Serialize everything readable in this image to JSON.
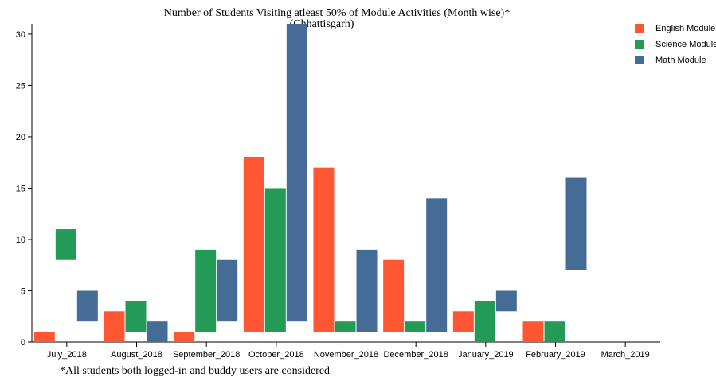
{
  "chart_data": {
    "type": "bar",
    "title": "Number of Students Visiting atleast 50% of Module Activities (Month wise)*",
    "subtitle": "(Chhattisgarh)",
    "footnote": "*All students both logged-in and buddy users are considered",
    "xlabel": "",
    "ylabel": "",
    "ylim": [
      0,
      31
    ],
    "yticks": [
      0,
      5,
      10,
      15,
      20,
      25,
      30
    ],
    "categories": [
      "July_2018",
      "August_2018",
      "September_2018",
      "October_2018",
      "November_2018",
      "December_2018",
      "January_2019",
      "February_2019",
      "March_2019"
    ],
    "legend_position": "top-right",
    "series": [
      {
        "name": "English Module",
        "color": "#ff5733",
        "ranges": [
          [
            0,
            1
          ],
          [
            0,
            3
          ],
          [
            0,
            1
          ],
          [
            1,
            18
          ],
          [
            1,
            17
          ],
          [
            1,
            8
          ],
          [
            1,
            3
          ],
          [
            0,
            2
          ],
          null
        ]
      },
      {
        "name": "Science Module",
        "color": "#239b56",
        "ranges": [
          [
            8,
            11
          ],
          [
            1,
            4
          ],
          [
            1,
            9
          ],
          [
            1,
            15
          ],
          [
            1,
            2
          ],
          [
            1,
            2
          ],
          [
            0,
            4
          ],
          [
            0,
            2
          ],
          null
        ]
      },
      {
        "name": "Math Module",
        "color": "#456c97",
        "ranges": [
          [
            2,
            5
          ],
          [
            0,
            2
          ],
          [
            2,
            8
          ],
          [
            2,
            31
          ],
          [
            1,
            9
          ],
          [
            1,
            14
          ],
          [
            3,
            5
          ],
          [
            7,
            16
          ],
          null
        ]
      }
    ]
  }
}
